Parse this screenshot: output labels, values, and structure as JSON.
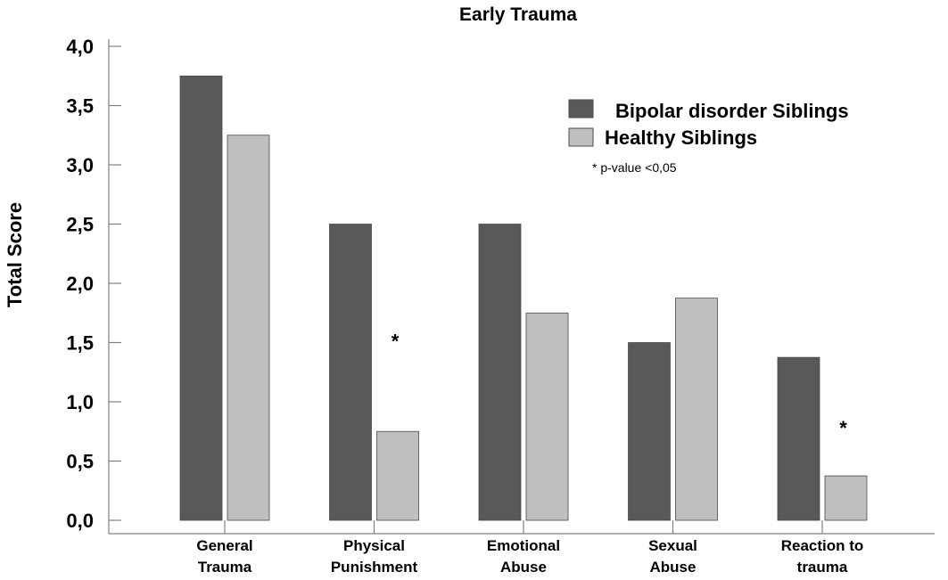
{
  "chart_data": {
    "type": "bar",
    "title": "Early Trauma",
    "xlabel": "",
    "ylabel": "Total Score",
    "ylim": [
      0,
      4
    ],
    "yticks": [
      0,
      0.5,
      1,
      1.5,
      2,
      2.5,
      3,
      3.5,
      4
    ],
    "ytick_labels": [
      "0,0",
      "0,5",
      "1,0",
      "1,5",
      "2,0",
      "2,5",
      "3,0",
      "3,5",
      "4,0"
    ],
    "categories": [
      [
        "General",
        "Trauma"
      ],
      [
        "Physical",
        "Punishment"
      ],
      [
        "Emotional",
        "Abuse"
      ],
      [
        "Sexual",
        "Abuse"
      ],
      [
        "Reaction to",
        "trauma"
      ]
    ],
    "series": [
      {
        "name": "Bipolar disorder Siblings",
        "color": "#595959",
        "values": [
          3.75,
          2.5,
          2.5,
          1.5,
          1.375
        ]
      },
      {
        "name": "Healthy Siblings",
        "color": "#bfbfbf",
        "values": [
          3.25,
          0.75,
          1.75,
          1.875,
          0.375
        ]
      }
    ],
    "significance_marker": "*",
    "significant_categories": [
      1,
      4
    ],
    "annotation": "* p-value <0,05",
    "legend_position": "top-right",
    "grid": false
  }
}
